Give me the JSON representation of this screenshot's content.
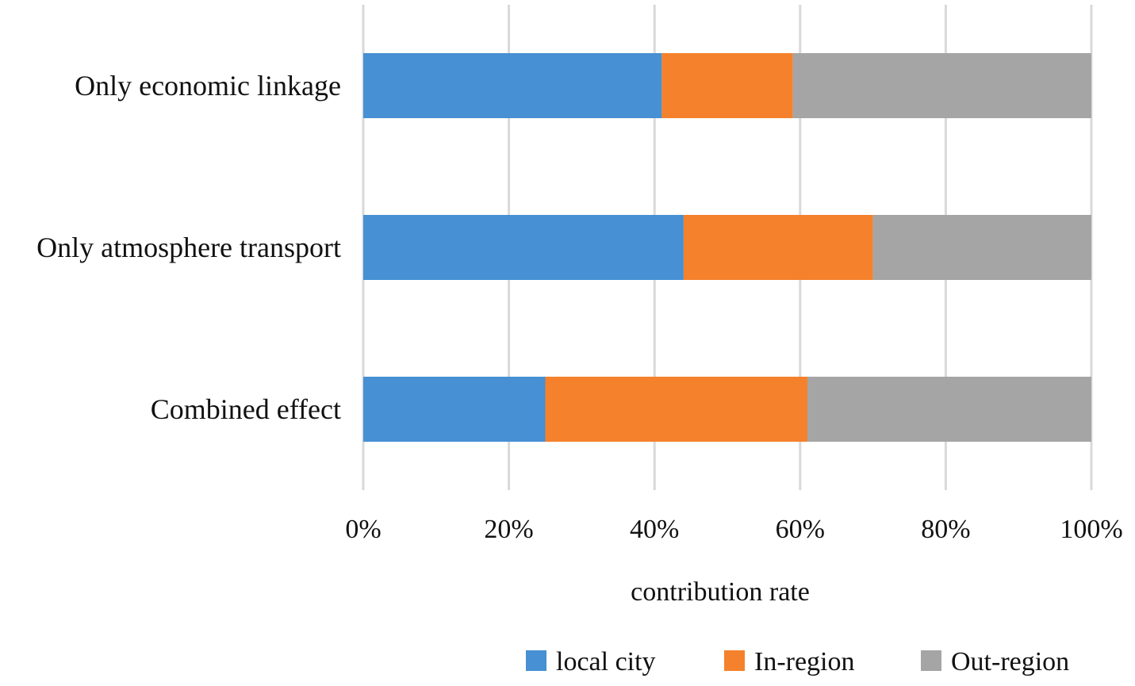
{
  "chart_data": {
    "type": "bar",
    "orientation": "horizontal",
    "stacked": "percent",
    "categories": [
      "Only economic linkage",
      "Only atmosphere transport",
      "Combined effect"
    ],
    "series": [
      {
        "name": "local city",
        "color": "#4690d3",
        "values": [
          41,
          44,
          25
        ]
      },
      {
        "name": "In-region",
        "color": "#f5812c",
        "values": [
          18,
          26,
          36
        ]
      },
      {
        "name": "Out-region",
        "color": "#a5a5a5",
        "values": [
          41,
          30,
          39
        ]
      }
    ],
    "xlabel": "contribution rate",
    "ylabel": "",
    "xlim": [
      0,
      100
    ],
    "x_ticks": [
      "0%",
      "20%",
      "40%",
      "60%",
      "80%",
      "100%"
    ],
    "grid": "vertical",
    "legend_position": "bottom"
  }
}
